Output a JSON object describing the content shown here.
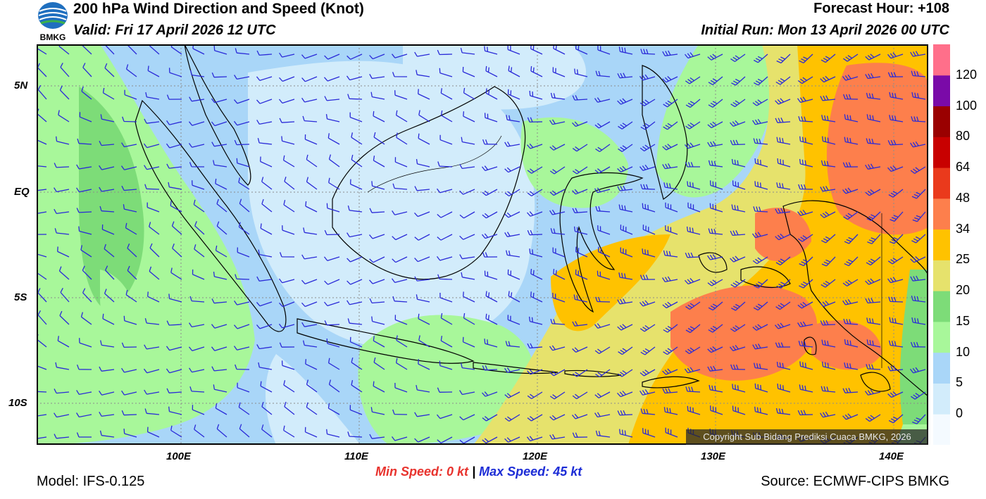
{
  "header": {
    "title": "200 hPa Wind Direction and Speed (Knot)",
    "valid": "Valid: Fri 17 April 2026 12 UTC",
    "forecast_hour": "Forecast Hour: +108",
    "initial_run": "Initial Run: Mon 13 April 2026 00 UTC"
  },
  "logo": {
    "text": "BMKG"
  },
  "map": {
    "lat_ticks": [
      "5N",
      "EQ",
      "5S",
      "10S"
    ],
    "lon_ticks": [
      "100E",
      "110E",
      "120E",
      "130E",
      "140E"
    ],
    "lat_range": [
      -12,
      6.5
    ],
    "lon_range": [
      92,
      142
    ],
    "copyright": "Copyright Sub Bidang Prediksi Cuaca BMKG, 2026",
    "barb_color": "#2a2ad8"
  },
  "colorbar": {
    "labels": [
      "0",
      "5",
      "10",
      "15",
      "20",
      "25",
      "34",
      "48",
      "64",
      "80",
      "100",
      "120"
    ],
    "colors": [
      "#f4faff",
      "#d2ecfb",
      "#a9d6f8",
      "#a8f79a",
      "#7ddc78",
      "#e6e26c",
      "#ffc200",
      "#fd7f4c",
      "#ea3a1c",
      "#c80000",
      "#9a0000",
      "#7a0aa8",
      "#ff6f8a"
    ]
  },
  "stats": {
    "min_label": "Min Speed:",
    "min_value": "0 kt",
    "separator": "|",
    "max_label": "Max Speed:",
    "max_value": "45 kt"
  },
  "footer": {
    "model": "Model: IFS-0.125",
    "source": "Source: ECMWF-CIPS BMKG"
  }
}
